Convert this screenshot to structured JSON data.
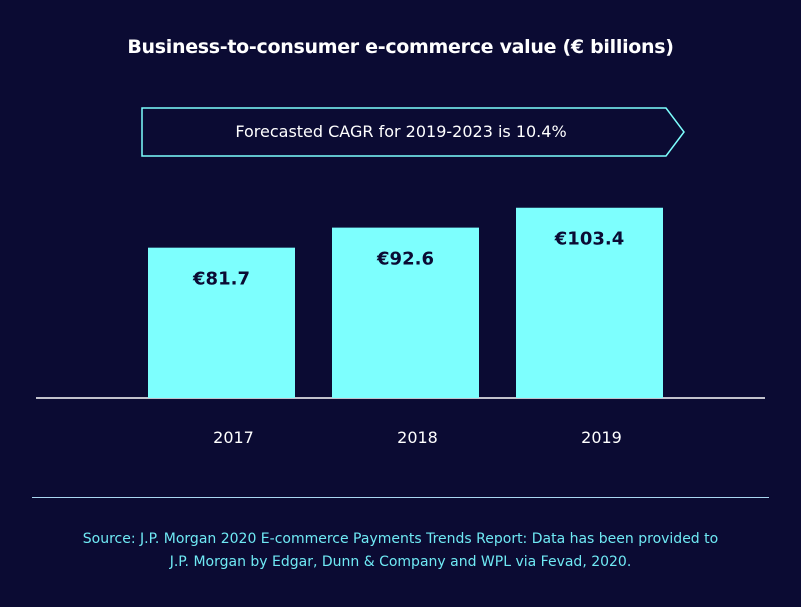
{
  "chart_data": {
    "type": "bar",
    "title": "Business-to-consumer e-commerce value (€ billions)",
    "categories": [
      "2017",
      "2018",
      "2019"
    ],
    "values": [
      81.7,
      92.6,
      103.4
    ],
    "value_labels": [
      "€81.7",
      "€92.6",
      "€103.4"
    ],
    "annotation": "Forecasted CAGR for 2019-2023 is 10.4%",
    "xlabel": "",
    "ylabel": "",
    "grid": false,
    "colors": {
      "bar": "#7dfffe",
      "background": "#0b0b33",
      "text": "#ffffff",
      "source": "#6fe9f4"
    }
  },
  "source": {
    "line1": "Source: J.P. Morgan 2020 E-commerce Payments Trends Report: Data has been provided to",
    "line2": "J.P. Morgan by Edgar, Dunn & Company and WPL via Fevad, 2020."
  }
}
